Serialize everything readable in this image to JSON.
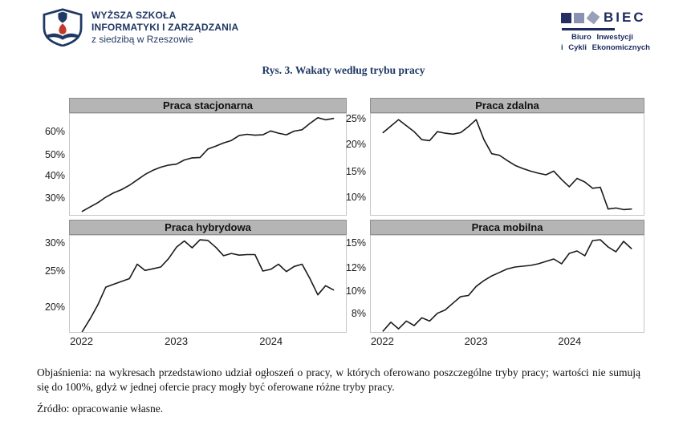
{
  "header": {
    "university": {
      "name_line1": "WYŻSZA SZKOŁA",
      "name_line2": "INFORMATYKI I ZARZĄDZANIA",
      "name_line3": "z siedzibą w Rzeszowie"
    },
    "biec": {
      "acronym": "BIEC",
      "subtitle_line1": "Biuro Inwestycji",
      "subtitle_line2": "i Cykli Ekonomicznych"
    }
  },
  "figure_title": "Rys. 3. Wakaty według trybu pracy",
  "footer": {
    "explanation": "Objaśnienia: na wykresach przedstawiono udział ogłoszeń o pracy, w których oferowano poszczególne tryby pracy; wartości nie sumują się do 100%, gdyż w jednej ofercie pracy mogły być oferowane różne tryby pracy.",
    "source": "Źródło: opracowanie własne."
  },
  "colors": {
    "navy": "#1f3864",
    "line": "#1a1a1a",
    "panel_border": "#c6c6c6",
    "title_bar_bg": "#b5b5b5",
    "biec_navy": "#242f63",
    "biec_gray": "#8a92b3",
    "logo_red": "#c0392b"
  },
  "chart_data": [
    {
      "type": "line",
      "title": "Praca stacjonarna",
      "unit": "%",
      "x_start": "2022-01",
      "x_frequency": "monthly",
      "x_tick_labels": [
        "2022",
        "2023",
        "2024"
      ],
      "x_tick_month_index": [
        0,
        12,
        24
      ],
      "x_start_frac": 0.045,
      "x_end_frac": 0.955,
      "grid": false,
      "y_ticks": [
        {
          "value": 60,
          "frac": 0.18
        },
        {
          "value": 50,
          "frac": 0.405
        },
        {
          "value": 40,
          "frac": 0.61
        },
        {
          "value": 30,
          "frac": 0.825
        }
      ],
      "values": [
        23.5,
        25.5,
        27.5,
        30,
        32,
        33.5,
        35.5,
        38,
        40.5,
        42.5,
        44,
        45,
        45.5,
        47.5,
        48.5,
        48.7,
        52.5,
        53.8,
        55.2,
        56.3,
        58.5,
        59,
        58.6,
        58.8,
        60.5,
        59.5,
        58.8,
        60.4,
        61,
        63.8,
        66.3,
        65.4,
        66
      ]
    },
    {
      "type": "line",
      "title": "Praca zdalna",
      "unit": "%",
      "x_start": "2022-01",
      "x_frequency": "monthly",
      "x_tick_labels": [
        "2022",
        "2023",
        "2024"
      ],
      "x_tick_month_index": [
        0,
        12,
        24
      ],
      "x_start_frac": 0.045,
      "x_end_frac": 0.955,
      "grid": false,
      "y_ticks": [
        {
          "value": 25,
          "frac": 0.057
        },
        {
          "value": 20,
          "frac": 0.305
        },
        {
          "value": 15,
          "frac": 0.567
        },
        {
          "value": 10,
          "frac": 0.824
        }
      ],
      "values": [
        22.4,
        23.7,
        25,
        23.8,
        22.6,
        21,
        20.8,
        22.6,
        22.3,
        22.1,
        22.4,
        23.6,
        25,
        21,
        18.3,
        18,
        17,
        16.1,
        15.5,
        15,
        14.6,
        14.3,
        15,
        13.4,
        12,
        13.6,
        12.9,
        11.7,
        11.9,
        7.7,
        7.9,
        7.6,
        7.7
      ]
    },
    {
      "type": "line",
      "title": "Praca hybrydowa",
      "unit": "%",
      "x_start": "2022-01",
      "x_frequency": "monthly",
      "x_tick_labels": [
        "2022",
        "2023",
        "2024"
      ],
      "x_tick_month_index": [
        0,
        12,
        24
      ],
      "x_start_frac": 0.045,
      "x_end_frac": 0.955,
      "grid": false,
      "y_ticks": [
        {
          "value": 30,
          "frac": 0.078
        },
        {
          "value": 25,
          "frac": 0.3725
        },
        {
          "value": 20,
          "frac": 0.739
        }
      ],
      "values": [
        16.5,
        18.3,
        20.3,
        22.8,
        23.2,
        23.6,
        24,
        26.3,
        25.2,
        25.5,
        25.8,
        27.3,
        29.3,
        30.4,
        29.2,
        30.6,
        30.5,
        29.3,
        27.8,
        28.2,
        27.9,
        28,
        28,
        25.1,
        25.4,
        26.3,
        25,
        25.9,
        26.3,
        24,
        21.7,
        23,
        22.4
      ]
    },
    {
      "type": "line",
      "title": "Praca mobilna",
      "unit": "%",
      "x_start": "2022-01",
      "x_frequency": "monthly",
      "x_tick_labels": [
        "2022",
        "2023",
        "2024"
      ],
      "x_tick_month_index": [
        0,
        12,
        24
      ],
      "x_start_frac": 0.045,
      "x_end_frac": 0.955,
      "grid": false,
      "y_ticks": [
        {
          "value": 15,
          "frac": 0.083
        },
        {
          "value": 12,
          "frac": 0.333
        },
        {
          "value": 10,
          "frac": 0.575
        },
        {
          "value": 8,
          "frac": 0.806
        }
      ],
      "values": [
        6.4,
        7.2,
        6.6,
        7.3,
        6.9,
        7.6,
        7.3,
        8,
        8.3,
        8.9,
        9.5,
        9.6,
        10.4,
        10.9,
        11.3,
        11.6,
        11.9,
        12.1,
        12.2,
        12.3,
        12.5,
        12.8,
        13.1,
        12.5,
        13.8,
        14.1,
        13.5,
        15.4,
        15.5,
        14.6,
        14,
        15.3,
        14.4
      ]
    }
  ]
}
